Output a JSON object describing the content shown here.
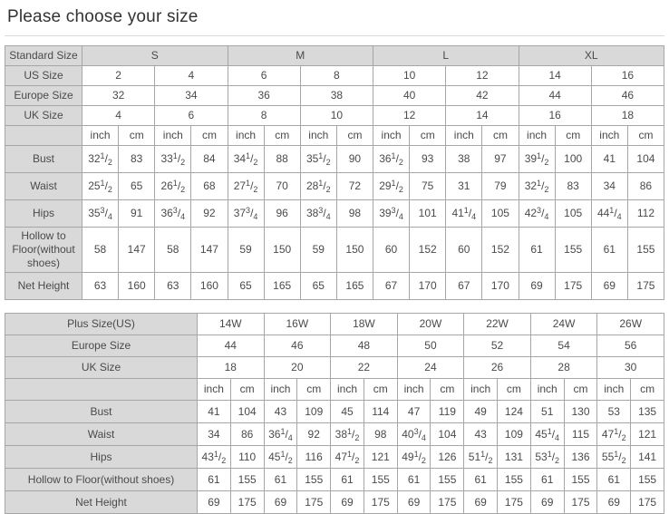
{
  "page": {
    "title": "Please choose your size"
  },
  "colors": {
    "label_bg": "#d9d9d9",
    "border": "#a6a6a6",
    "text": "#4a4a4a"
  },
  "standard_table": {
    "corner_label": "Standard Size",
    "groups": [
      "S",
      "M",
      "L",
      "XL"
    ],
    "size_rows": [
      {
        "label": "US Size",
        "values": [
          "2",
          "4",
          "6",
          "8",
          "10",
          "12",
          "14",
          "16"
        ]
      },
      {
        "label": "Europe Size",
        "values": [
          "32",
          "34",
          "36",
          "38",
          "40",
          "42",
          "44",
          "46"
        ]
      },
      {
        "label": "UK Size",
        "values": [
          "4",
          "6",
          "8",
          "10",
          "12",
          "14",
          "16",
          "18"
        ]
      }
    ],
    "units": [
      "inch",
      "cm"
    ],
    "measurement_rows": [
      {
        "label": "Bust",
        "values": [
          [
            "32 1/2",
            "83"
          ],
          [
            "33 1/2",
            "84"
          ],
          [
            "34 1/2",
            "88"
          ],
          [
            "35 1/2",
            "90"
          ],
          [
            "36 1/2",
            "93"
          ],
          [
            "38",
            "97"
          ],
          [
            "39 1/2",
            "100"
          ],
          [
            "41",
            "104"
          ]
        ]
      },
      {
        "label": "Waist",
        "values": [
          [
            "25 1/2",
            "65"
          ],
          [
            "26 1/2",
            "68"
          ],
          [
            "27 1/2",
            "70"
          ],
          [
            "28 1/2",
            "72"
          ],
          [
            "29 1/2",
            "75"
          ],
          [
            "31",
            "79"
          ],
          [
            "32 1/2",
            "83"
          ],
          [
            "34",
            "86"
          ]
        ]
      },
      {
        "label": "Hips",
        "values": [
          [
            "35 3/4",
            "91"
          ],
          [
            "36 3/4",
            "92"
          ],
          [
            "37 3/4",
            "96"
          ],
          [
            "38 3/4",
            "98"
          ],
          [
            "39 3/4",
            "101"
          ],
          [
            "41 1/4",
            "105"
          ],
          [
            "42 3/4",
            "105"
          ],
          [
            "44 1/4",
            "112"
          ]
        ]
      },
      {
        "label": "Hollow to Floor(without shoes)",
        "values": [
          [
            "58",
            "147"
          ],
          [
            "58",
            "147"
          ],
          [
            "59",
            "150"
          ],
          [
            "59",
            "150"
          ],
          [
            "60",
            "152"
          ],
          [
            "60",
            "152"
          ],
          [
            "61",
            "155"
          ],
          [
            "61",
            "155"
          ]
        ]
      },
      {
        "label": "Net Height",
        "values": [
          [
            "63",
            "160"
          ],
          [
            "63",
            "160"
          ],
          [
            "65",
            "165"
          ],
          [
            "65",
            "165"
          ],
          [
            "67",
            "170"
          ],
          [
            "67",
            "170"
          ],
          [
            "69",
            "175"
          ],
          [
            "69",
            "175"
          ]
        ]
      }
    ]
  },
  "plus_table": {
    "size_rows": [
      {
        "label": "Plus Size(US)",
        "values": [
          "14W",
          "16W",
          "18W",
          "20W",
          "22W",
          "24W",
          "26W"
        ]
      },
      {
        "label": "Europe Size",
        "values": [
          "44",
          "46",
          "48",
          "50",
          "52",
          "54",
          "56"
        ]
      },
      {
        "label": "UK Size",
        "values": [
          "18",
          "20",
          "22",
          "24",
          "26",
          "28",
          "30"
        ]
      }
    ],
    "units": [
      "inch",
      "cm"
    ],
    "measurement_rows": [
      {
        "label": "Bust",
        "values": [
          [
            "41",
            "104"
          ],
          [
            "43",
            "109"
          ],
          [
            "45",
            "114"
          ],
          [
            "47",
            "119"
          ],
          [
            "49",
            "124"
          ],
          [
            "51",
            "130"
          ],
          [
            "53",
            "135"
          ]
        ]
      },
      {
        "label": "Waist",
        "values": [
          [
            "34",
            "86"
          ],
          [
            "36 1/4",
            "92"
          ],
          [
            "38 1/2",
            "98"
          ],
          [
            "40 3/4",
            "104"
          ],
          [
            "43",
            "109"
          ],
          [
            "45 1/4",
            "115"
          ],
          [
            "47 1/2",
            "121"
          ]
        ]
      },
      {
        "label": "Hips",
        "values": [
          [
            "43 1/2",
            "110"
          ],
          [
            "45 1/2",
            "116"
          ],
          [
            "47 1/2",
            "121"
          ],
          [
            "49 1/2",
            "126"
          ],
          [
            "51 1/2",
            "131"
          ],
          [
            "53 1/2",
            "136"
          ],
          [
            "55 1/2",
            "141"
          ]
        ]
      },
      {
        "label": "Hollow to Floor(without shoes)",
        "values": [
          [
            "61",
            "155"
          ],
          [
            "61",
            "155"
          ],
          [
            "61",
            "155"
          ],
          [
            "61",
            "155"
          ],
          [
            "61",
            "155"
          ],
          [
            "61",
            "155"
          ],
          [
            "61",
            "155"
          ]
        ]
      },
      {
        "label": "Net Height",
        "values": [
          [
            "69",
            "175"
          ],
          [
            "69",
            "175"
          ],
          [
            "69",
            "175"
          ],
          [
            "69",
            "175"
          ],
          [
            "69",
            "175"
          ],
          [
            "69",
            "175"
          ],
          [
            "69",
            "175"
          ]
        ]
      }
    ]
  }
}
